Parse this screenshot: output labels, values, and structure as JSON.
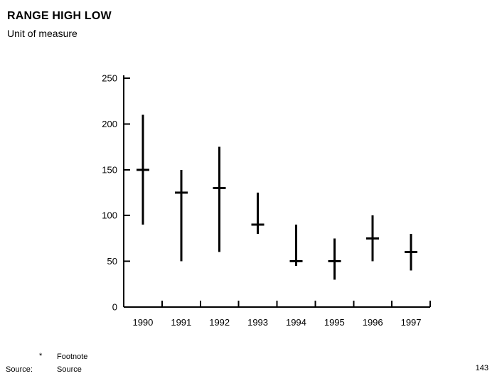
{
  "page": {
    "title": "RANGE HIGH LOW",
    "subtitle": "Unit of measure",
    "footnote_marker": "*",
    "footnote_text": "Footnote",
    "source_label": "Source:",
    "source_text": "Source",
    "page_number": "143"
  },
  "chart_data": {
    "type": "hilo",
    "title": "RANGE HIGH LOW",
    "unit_label": "Unit of measure",
    "categories": [
      "1990",
      "1991",
      "1992",
      "1993",
      "1994",
      "1995",
      "1996",
      "1997"
    ],
    "series": [
      {
        "name": "high",
        "values": [
          210,
          150,
          175,
          125,
          90,
          75,
          100,
          80
        ]
      },
      {
        "name": "low",
        "values": [
          90,
          50,
          60,
          80,
          45,
          30,
          50,
          40
        ]
      },
      {
        "name": "mid",
        "values": [
          150,
          125,
          130,
          90,
          50,
          50,
          75,
          60
        ]
      }
    ],
    "ylim": [
      0,
      250
    ],
    "yticks": [
      0,
      50,
      100,
      150,
      200,
      250
    ],
    "grid": false,
    "legend": false,
    "axis_color": "#000000",
    "bar_color": "#000000"
  }
}
